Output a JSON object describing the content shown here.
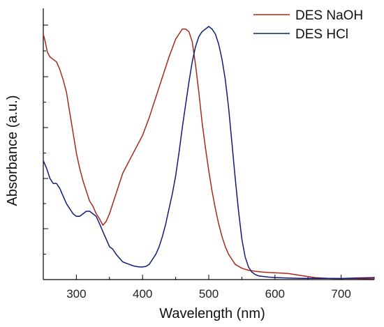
{
  "chart_data": {
    "type": "line",
    "title": "",
    "xlabel": "Wavelength (nm)",
    "ylabel": "Absorbance (a.u.)",
    "xlim": [
      250,
      750
    ],
    "ylim": [
      0,
      1
    ],
    "x_ticks": [
      300,
      400,
      500,
      600,
      700
    ],
    "x_tick_labels": [
      "300",
      "400",
      "500",
      "600",
      "700"
    ],
    "y_tick_labels_shown": false,
    "grid": false,
    "legend_position": "top-right",
    "series": [
      {
        "name": "DES NaOH",
        "color": "#a52a1a",
        "x": [
          250,
          253,
          256,
          260,
          265,
          270,
          275,
          280,
          285,
          290,
          295,
          300,
          305,
          310,
          315,
          320,
          325,
          330,
          335,
          340,
          345,
          350,
          355,
          360,
          365,
          370,
          380,
          390,
          400,
          410,
          420,
          430,
          440,
          450,
          455,
          460,
          465,
          470,
          475,
          480,
          485,
          490,
          495,
          500,
          505,
          510,
          515,
          520,
          525,
          530,
          535,
          540,
          550,
          560,
          570,
          580,
          590,
          600,
          620,
          640,
          660,
          680,
          700,
          720,
          750
        ],
        "y": [
          0.97,
          0.94,
          0.9,
          0.88,
          0.87,
          0.86,
          0.83,
          0.79,
          0.74,
          0.66,
          0.58,
          0.5,
          0.44,
          0.39,
          0.35,
          0.31,
          0.29,
          0.26,
          0.24,
          0.215,
          0.23,
          0.26,
          0.3,
          0.34,
          0.38,
          0.42,
          0.47,
          0.52,
          0.57,
          0.64,
          0.72,
          0.8,
          0.88,
          0.95,
          0.97,
          0.99,
          0.99,
          0.98,
          0.94,
          0.85,
          0.74,
          0.62,
          0.52,
          0.43,
          0.35,
          0.28,
          0.22,
          0.17,
          0.13,
          0.1,
          0.08,
          0.06,
          0.045,
          0.037,
          0.033,
          0.03,
          0.028,
          0.027,
          0.024,
          0.016,
          0.008,
          0.005,
          0.004,
          0.004,
          0.003
        ]
      },
      {
        "name": "DES HCl",
        "color": "#101a7a",
        "x": [
          250,
          255,
          260,
          265,
          270,
          275,
          280,
          285,
          290,
          295,
          300,
          305,
          310,
          315,
          320,
          325,
          330,
          335,
          340,
          345,
          350,
          355,
          360,
          365,
          370,
          375,
          380,
          385,
          390,
          395,
          400,
          405,
          410,
          415,
          420,
          425,
          430,
          435,
          440,
          445,
          450,
          455,
          460,
          465,
          470,
          475,
          480,
          485,
          490,
          495,
          500,
          505,
          510,
          515,
          520,
          525,
          530,
          535,
          540,
          545,
          550,
          555,
          560,
          565,
          570,
          575,
          580,
          590,
          600,
          620,
          640,
          660,
          680,
          700,
          720,
          750
        ],
        "y": [
          0.47,
          0.44,
          0.4,
          0.38,
          0.38,
          0.36,
          0.33,
          0.3,
          0.28,
          0.26,
          0.25,
          0.25,
          0.26,
          0.27,
          0.27,
          0.26,
          0.25,
          0.22,
          0.19,
          0.16,
          0.13,
          0.12,
          0.1,
          0.085,
          0.07,
          0.065,
          0.06,
          0.055,
          0.052,
          0.05,
          0.05,
          0.052,
          0.06,
          0.08,
          0.1,
          0.13,
          0.17,
          0.22,
          0.28,
          0.34,
          0.41,
          0.5,
          0.6,
          0.69,
          0.78,
          0.86,
          0.92,
          0.96,
          0.98,
          0.99,
          1.0,
          0.99,
          0.97,
          0.93,
          0.87,
          0.79,
          0.68,
          0.54,
          0.4,
          0.27,
          0.16,
          0.09,
          0.05,
          0.03,
          0.02,
          0.015,
          0.013,
          0.01,
          0.008,
          0.006,
          0.005,
          0.005,
          0.005,
          0.004,
          0.006,
          0.008
        ]
      }
    ]
  }
}
